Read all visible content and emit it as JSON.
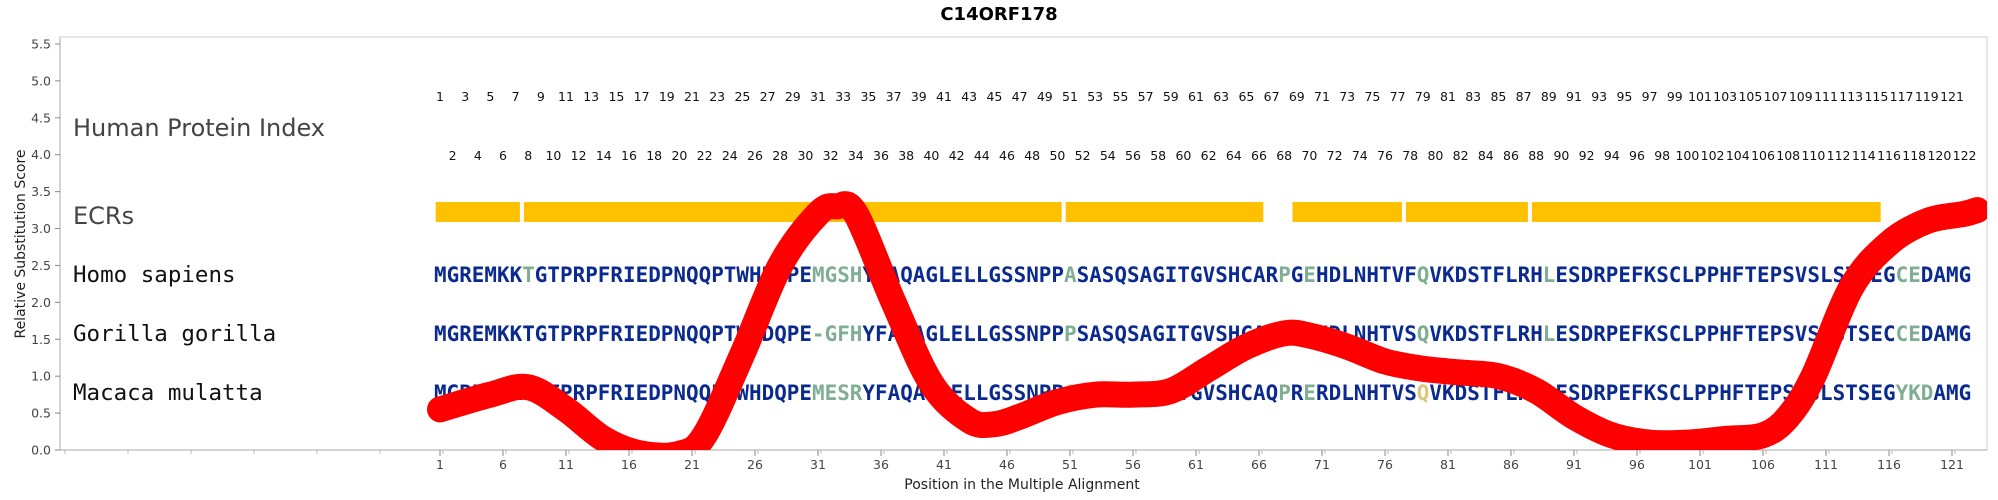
{
  "chart_data": {
    "type": "line",
    "title": "C14ORF178",
    "xlabel": "Position in the Multiple Alignment",
    "ylabel": "Relative Substitution Score",
    "ylim": [
      0,
      5.5
    ],
    "xlim": [
      1,
      123
    ],
    "y_ticks": [
      "0.0",
      "0.5",
      "1.0",
      "1.5",
      "2.0",
      "2.5",
      "3.0",
      "3.5",
      "4.0",
      "4.5",
      "5.0",
      "5.5"
    ],
    "x_ticks": [
      1,
      6,
      11,
      16,
      21,
      26,
      31,
      36,
      41,
      46,
      51,
      56,
      61,
      66,
      71,
      76,
      81,
      86,
      91,
      96,
      101,
      106,
      111,
      116,
      121
    ],
    "series": [
      {
        "color": "#ff0000",
        "x": [
          1,
          5,
          8,
          11,
          14,
          17,
          20,
          22,
          25,
          28,
          31,
          32.5,
          34,
          37,
          40,
          43,
          45,
          47,
          50,
          53,
          56,
          59,
          62,
          65,
          68,
          70,
          73,
          76,
          79,
          82,
          85,
          88,
          91,
          94,
          97,
          100,
          103,
          106,
          108,
          110,
          113,
          116,
          119,
          122,
          123
        ],
        "y": [
          0.55,
          0.75,
          0.85,
          0.55,
          0.15,
          -0.05,
          -0.05,
          0.2,
          1.3,
          2.5,
          3.2,
          3.3,
          3.2,
          2.0,
          0.9,
          0.4,
          0.35,
          0.45,
          0.65,
          0.75,
          0.75,
          0.8,
          1.1,
          1.4,
          1.58,
          1.55,
          1.4,
          1.2,
          1.1,
          1.05,
          1.0,
          0.8,
          0.45,
          0.2,
          0.1,
          0.1,
          0.15,
          0.2,
          0.45,
          1.0,
          2.2,
          2.8,
          3.1,
          3.2,
          3.25
        ]
      }
    ],
    "ecr_segments": [
      [
        1,
        7
      ],
      [
        8,
        50
      ],
      [
        51,
        66
      ],
      [
        69,
        77
      ],
      [
        78,
        87
      ],
      [
        88,
        115
      ]
    ],
    "ecr_color": "#ffc000"
  },
  "row_labels": {
    "hpi": "Human Protein Index",
    "ecrs": "ECRs",
    "homo": "Homo sapiens",
    "gorilla": "Gorilla gorilla",
    "macaca": "Macaca mulatta"
  },
  "hpi": {
    "odd": [
      "1",
      "3",
      "5",
      "7",
      "9",
      "11",
      "13",
      "15",
      "17",
      "19",
      "21",
      "23",
      "25",
      "27",
      "29",
      "31",
      "33",
      "35",
      "37",
      "39",
      "41",
      "43",
      "45",
      "47",
      "49",
      "51",
      "53",
      "55",
      "57",
      "59",
      "61",
      "63",
      "65",
      "67",
      "69",
      "71",
      "73",
      "75",
      "77",
      "79",
      "81",
      "83",
      "85",
      "87",
      "89",
      "91",
      "93",
      "95",
      "97",
      "99",
      "101",
      "103",
      "105",
      "107",
      "109",
      "111",
      "113",
      "115",
      "117",
      "119",
      "121"
    ],
    "even": [
      "2",
      "4",
      "6",
      "8",
      "10",
      "12",
      "14",
      "16",
      "18",
      "20",
      "22",
      "24",
      "26",
      "28",
      "30",
      "32",
      "34",
      "36",
      "38",
      "40",
      "42",
      "44",
      "46",
      "48",
      "50",
      "52",
      "54",
      "56",
      "58",
      "60",
      "62",
      "64",
      "66",
      "68",
      "70",
      "72",
      "74",
      "76",
      "78",
      "80",
      "82",
      "84",
      "86",
      "88",
      "90",
      "92",
      "94",
      "96",
      "98",
      "100",
      "102",
      "104",
      "106",
      "108",
      "110",
      "112",
      "114",
      "116",
      "118",
      "120",
      "122"
    ]
  },
  "sequences": [
    {
      "key": "homo",
      "seq": "MGREMKKTGTPRPFRIEDPNQQPTWHDQPEMGSHYFAQAGLELLGSSNPPASASQSAGITGVSHCARPGEHDLNHTVFQVKDSTFLRHLESDRPEFKSCLPPHFTEPSVSLSTSEGCEDAMG",
      "colors": "BBBBBBBGBBBBBBBBBBBBBBBBBBBBBBGGGGBBBBBBBBBBBBBBBBGBBBBBBBBBBBBBBBBGBGBBBBBBBBGBBBBBBBBBGBBBBBBBBBBBBBBBBBBBBBBBBBBBGGBBBBB"
    },
    {
      "key": "gorilla",
      "seq": "MGREMKKTGTPRPFRIEDPNQQPTWHDQPE-GFHYFAQAGLELLGSSNPPPSASQSAGITGVSHCAQPGEHDLNHTVSQVKDSTFLRHLESDRPEFKSCLPPHFTEPSVSLSTSECCEDAMG",
      "colors": "BBBBBBBBBBBBBBBBBBBBBBBBBBBBBBGGGGBBBBBBBBBBBBBBBBGBBBBBBBBBBBBBBBBGYGBBBBBBBBGBBBBBBBBBGBBBBBBBBBBBBBBBBBBBBBBBBBBBGGBBBBB"
    },
    {
      "key": "macaca",
      "seq": "MGREMKKIGTPRPFRIEDPNQQPTWHDQPEMESRYFAQAGLELLGSSNPPASASQSAGVTGVSHCAQPRERDLNHTVSQVKDSTFLRNLESDRPEFKSCLPPHFTEPSVSLSTSEGYKDAMG",
      "colors": "BBBBBBBYBBBBBBBBBBBBBBBBBBBBBBGGGGBBBBBBBBBBBBBBBBYBBBBBBBGBBBBBBBBGBGBBBBBBBBYBBBBBBBBBYBBBBBBBBBBBBBBBBBBBBBBBBBBBGGGBBBB"
    }
  ],
  "palette": {
    "B": "#0a2a8f",
    "G": "#7fae94",
    "Y": "#d8c87a"
  }
}
